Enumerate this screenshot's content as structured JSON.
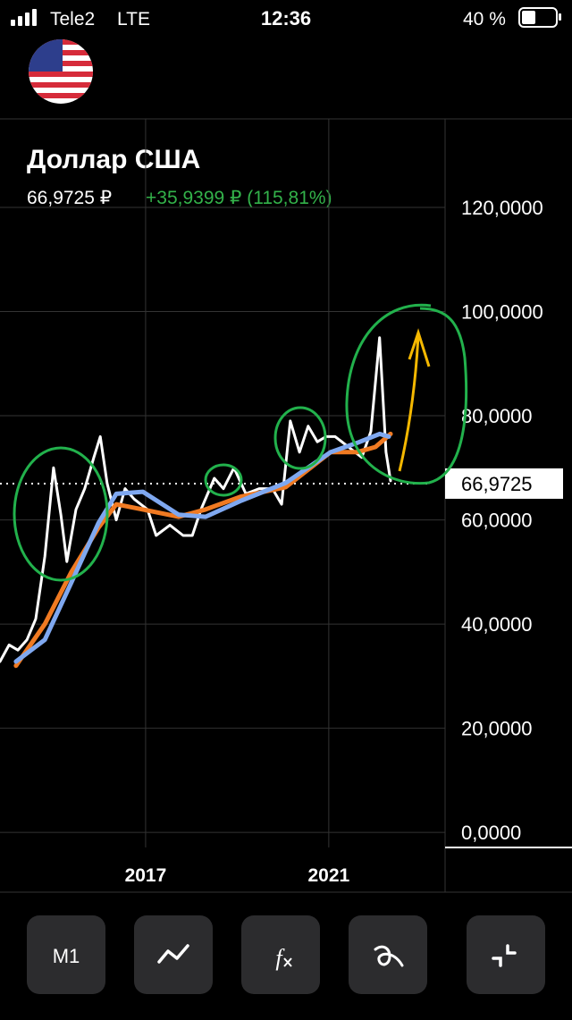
{
  "status_bar": {
    "carrier": "Tele2",
    "network": "LTE",
    "time": "12:36",
    "battery": "40 %"
  },
  "header": {
    "title": "Доллар США",
    "price": "66,9725 ₽",
    "change": "+35,9399 ₽ (115,81%)"
  },
  "chart_data": {
    "type": "line",
    "xlim": [
      2013.82,
      2023.54
    ],
    "xticks": [
      2017,
      2021
    ],
    "ylim": [
      -2.9,
      137.0
    ],
    "yticks": [
      {
        "value": 0,
        "label": "0,0000"
      },
      {
        "value": 20,
        "label": "20,0000"
      },
      {
        "value": 40,
        "label": "40,0000"
      },
      {
        "value": 60,
        "label": "60,0000"
      },
      {
        "value": 80,
        "label": "80,0000"
      },
      {
        "value": 100,
        "label": "100,0000"
      },
      {
        "value": 120,
        "label": "120,0000"
      }
    ],
    "grid": true,
    "current_price": {
      "value": 66.9725,
      "label": "66,9725"
    },
    "series": [
      {
        "color": "#ffffff",
        "x": [
          2013.82,
          2014.02,
          2014.21,
          2014.41,
          2014.6,
          2014.8,
          2014.99,
          2015.15,
          2015.28,
          2015.48,
          2015.67,
          2015.87,
          2016.01,
          2016.16,
          2016.36,
          2016.55,
          2016.75,
          2017.04,
          2017.23,
          2017.53,
          2017.82,
          2018.02,
          2018.21,
          2018.5,
          2018.7,
          2018.93,
          2019.19,
          2019.48,
          2019.77,
          2019.97,
          2020.16,
          2020.36,
          2020.55,
          2020.75,
          2020.94,
          2021.14,
          2021.43,
          2021.72,
          2021.92,
          2022.11,
          2022.25,
          2022.35
        ],
        "values": [
          32.8,
          36,
          35,
          37,
          41,
          53,
          70,
          61,
          52,
          62,
          66,
          72,
          76,
          67,
          60,
          66,
          64,
          62,
          57,
          59,
          57,
          57,
          62,
          68,
          66,
          70,
          65,
          66,
          66,
          63,
          79,
          73,
          78,
          75,
          76,
          76,
          74,
          72,
          77,
          95,
          73,
          67.5
        ]
      },
      {
        "color": "#f07a22",
        "x": [
          2014.17,
          2014.8,
          2015.38,
          2015.97,
          2016.36,
          2016.94,
          2017.72,
          2018.31,
          2019.09,
          2020.06,
          2021.04,
          2021.62,
          2022.02,
          2022.35
        ],
        "values": [
          32,
          40,
          50,
          58.5,
          63,
          62,
          60.6,
          62,
          64.5,
          66.3,
          73,
          73,
          74,
          76.5
        ]
      },
      {
        "color": "#7fa8f0",
        "x": [
          2014.17,
          2014.8,
          2015.38,
          2015.97,
          2016.36,
          2016.94,
          2017.72,
          2018.31,
          2019.09,
          2020.06,
          2021.04,
          2021.62,
          2022.11,
          2022.31
        ],
        "values": [
          32.8,
          37,
          48,
          59.4,
          65,
          65.4,
          61,
          60.6,
          63.7,
          67.1,
          73,
          74.8,
          76.5,
          76
        ]
      }
    ]
  },
  "toolbar": {
    "period": "M1"
  }
}
